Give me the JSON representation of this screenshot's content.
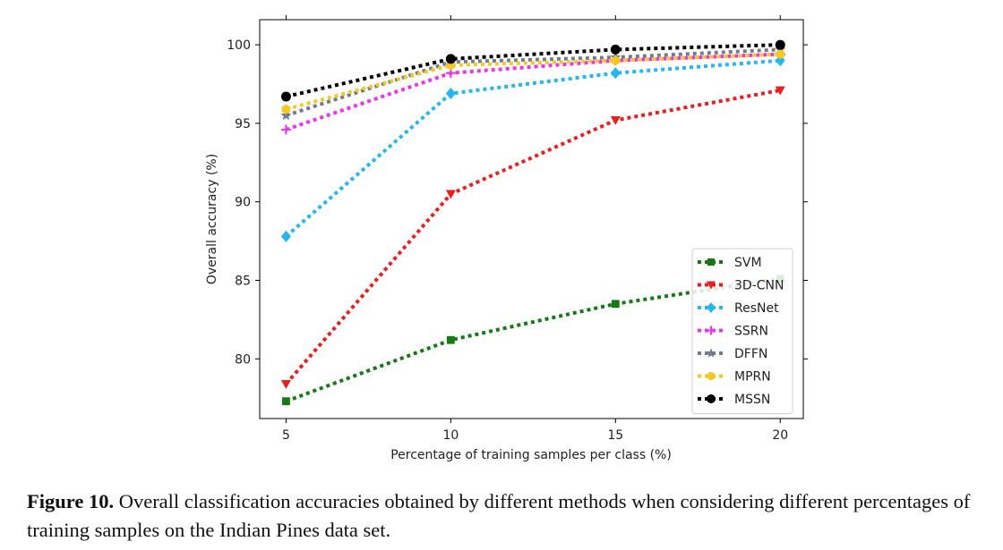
{
  "chart_data": {
    "type": "line",
    "xlabel": "Percentage of training samples per class (%)",
    "ylabel": "Overall accuracy (%)",
    "x": [
      5,
      10,
      15,
      20
    ],
    "x_ticks": [
      "5",
      "10",
      "15",
      "20"
    ],
    "y_ticks": [
      "80",
      "85",
      "90",
      "95",
      "100"
    ],
    "xlim": [
      4.2,
      20.7
    ],
    "ylim": [
      76.2,
      101.6
    ],
    "grid": false,
    "legend_position": "lower-right",
    "series": [
      {
        "name": "SVM",
        "color": "#147a14",
        "marker": "square",
        "values": [
          77.3,
          81.2,
          83.5,
          85.1
        ]
      },
      {
        "name": "3D-CNN",
        "color": "#ee1c1c",
        "marker": "triangle-down",
        "values": [
          78.4,
          90.5,
          95.2,
          97.1
        ]
      },
      {
        "name": "ResNet",
        "color": "#22b8f0",
        "marker": "diamond",
        "values": [
          87.8,
          96.9,
          98.2,
          99.0
        ]
      },
      {
        "name": "SSRN",
        "color": "#ee33ee",
        "marker": "plus",
        "values": [
          94.6,
          98.2,
          99.0,
          99.4
        ]
      },
      {
        "name": "DFFN",
        "color": "#6f7d8c",
        "marker": "star",
        "values": [
          95.5,
          98.9,
          99.2,
          99.7
        ]
      },
      {
        "name": "MPRN",
        "color": "#f7c81e",
        "marker": "hexagon",
        "values": [
          95.9,
          98.7,
          99.0,
          99.4
        ]
      },
      {
        "name": "MSSN",
        "color": "#000000",
        "marker": "circle",
        "values": [
          96.7,
          99.1,
          99.7,
          100.0
        ]
      }
    ]
  },
  "caption": {
    "label": "Figure 10.",
    "text": " Overall classification accuracies obtained by different methods when considering different percentages of training samples on the Indian Pines data set."
  }
}
